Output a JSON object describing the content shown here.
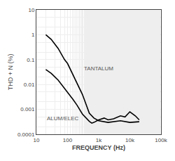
{
  "chart_data": {
    "type": "line",
    "xlabel": "FREQUENCY (Hz)",
    "ylabel": "THD + N (%)",
    "log": true,
    "grid": true,
    "xlim": [
      10,
      100000
    ],
    "ylim": [
      0.0001,
      10
    ],
    "xticks": [
      10,
      100,
      {
        "value": 1000,
        "label": "1k"
      },
      {
        "value": 10000,
        "label": "10k"
      },
      {
        "value": 100000,
        "label": "100k"
      }
    ],
    "yticks": [
      0.0001,
      0.001,
      0.01,
      0.1,
      1,
      10
    ],
    "series": [
      {
        "color": "#000000",
        "x": [
          20,
          30,
          50,
          80,
          100,
          150,
          200,
          300,
          500,
          700,
          1000,
          2000,
          5000,
          10000,
          20000
        ],
        "values": [
          1.0,
          0.65,
          0.28,
          0.1,
          0.07,
          0.025,
          0.012,
          0.004,
          0.0007,
          0.00045,
          0.00035,
          0.0003,
          0.00035,
          0.0003,
          0.00032
        ]
      },
      {
        "color": "#000000",
        "x": [
          20,
          30,
          50,
          80,
          100,
          150,
          200,
          300,
          500,
          600,
          700,
          800,
          1000,
          1500,
          2000,
          3000,
          4000,
          5000,
          7000,
          10000,
          15000,
          20000
        ],
        "values": [
          0.04,
          0.028,
          0.015,
          0.007,
          0.005,
          0.0025,
          0.0015,
          0.00065,
          0.00033,
          0.00028,
          0.0003,
          0.00033,
          0.00038,
          0.00045,
          0.00038,
          0.00042,
          0.0005,
          0.00055,
          0.0005,
          0.0008,
          0.00055,
          0.00038
        ]
      }
    ],
    "annotations": [
      {
        "text": "TANTALUM",
        "x": 300,
        "y": 0.028,
        "anchor": "bottom"
      },
      {
        "text": "ALUM/ELEC",
        "x": 20,
        "y": 0.00065,
        "anchor": "top"
      }
    ]
  }
}
